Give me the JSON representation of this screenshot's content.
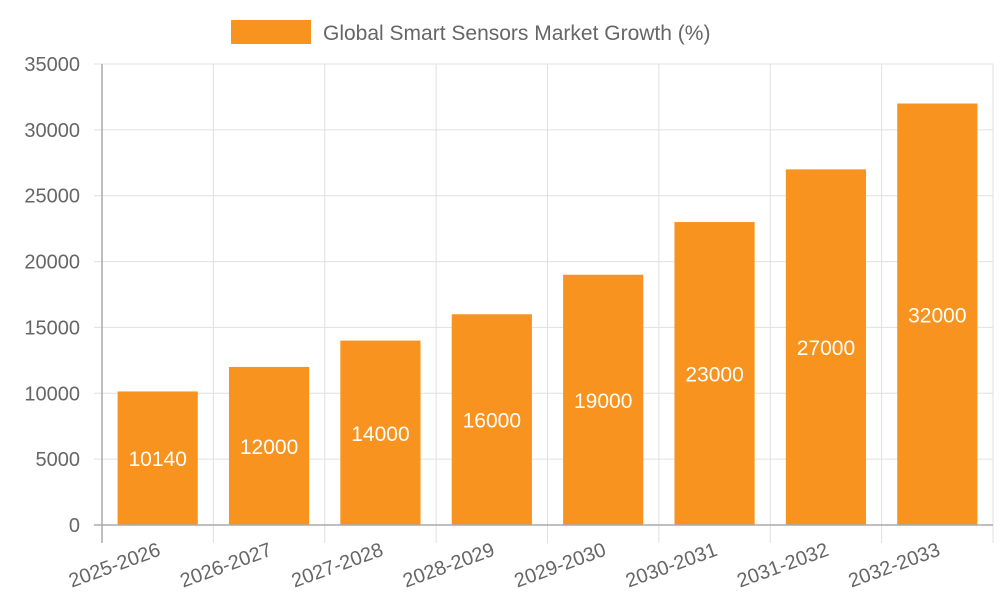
{
  "chart_data": {
    "type": "bar",
    "title": "",
    "categories": [
      "2025-2026",
      "2026-2027",
      "2027-2028",
      "2028-2029",
      "2029-2030",
      "2030-2031",
      "2031-2032",
      "2032-2033"
    ],
    "series": [
      {
        "name": "Global Smart Sensors Market Growth (%)",
        "values": [
          10140,
          12000,
          14000,
          16000,
          19000,
          23000,
          27000,
          32000
        ],
        "color": "#F7931E"
      }
    ],
    "ylim": [
      0,
      35000
    ],
    "yticks": [
      0,
      5000,
      10000,
      15000,
      20000,
      25000,
      30000,
      35000
    ],
    "xlabel": "",
    "ylabel": "",
    "grid": true,
    "legend": "top-center",
    "data_labels": true
  }
}
